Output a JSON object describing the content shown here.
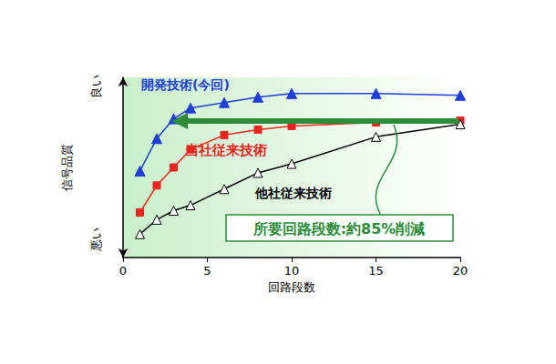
{
  "chart_data": {
    "type": "line",
    "x_label": "回路段数",
    "y_label": "信号品質",
    "xlim": [
      0,
      20
    ],
    "xticks": [
      0,
      5,
      10,
      15,
      20
    ],
    "ylim": [
      0,
      100
    ],
    "yticks": [
      {
        "value": 10,
        "label": "悪い"
      },
      {
        "value": 95,
        "label": "良い"
      }
    ],
    "grid": false,
    "x": [
      1,
      2,
      3,
      4,
      6,
      8,
      10,
      15,
      20
    ],
    "series": [
      {
        "name": "開発技術(今回)",
        "color": "#1f3fd6",
        "marker": "triangle",
        "values": [
          48,
          66,
          77,
          83,
          86,
          89,
          91,
          91,
          90
        ]
      },
      {
        "name": "当社従来技術",
        "color": "#e8261f",
        "marker": "square",
        "values": [
          25,
          40,
          50,
          60,
          68,
          71,
          73,
          75,
          76
        ]
      },
      {
        "name": "他社従来技術",
        "color": "#000000",
        "marker": "triangle_open",
        "values": [
          13,
          21,
          26,
          29,
          38,
          47,
          52,
          67,
          74
        ]
      }
    ],
    "annotations": [
      "所要回路段数:約85%削減"
    ]
  }
}
